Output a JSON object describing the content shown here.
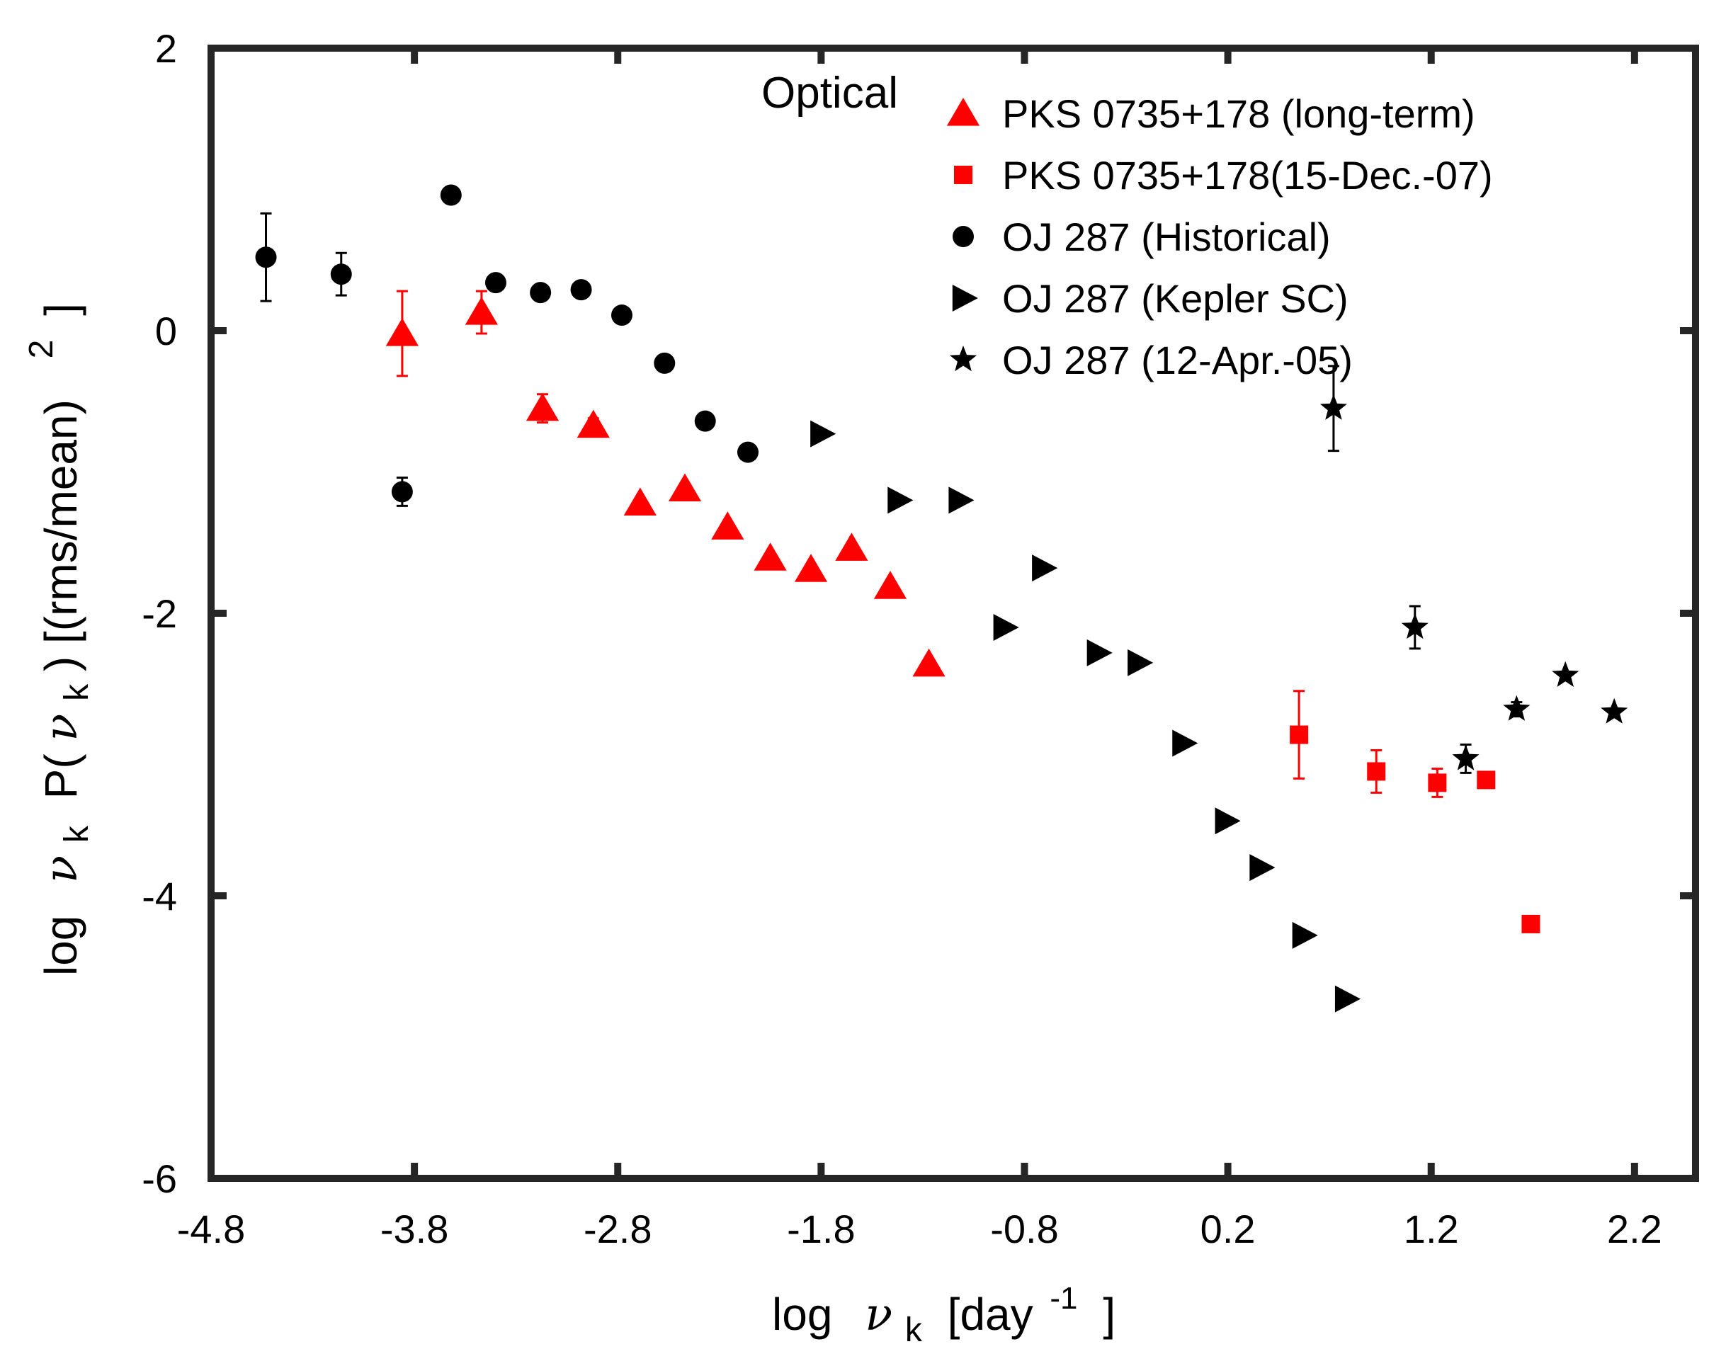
{
  "chart_data": {
    "type": "scatter",
    "title": "",
    "annotation": "Optical",
    "xlabel": {
      "prefix": "log",
      "symbol": "ν",
      "subscript": "k",
      "unit_open": "[day",
      "unit_sup": "-1",
      "unit_close": "]"
    },
    "ylabel": {
      "prefix": "log",
      "symbol": "ν",
      "subscript": "k",
      "middle": "P(",
      "symbol2": "ν",
      "subscript2": "k",
      "rest": ") [(rms/mean)",
      "sup": "2",
      "close": "]"
    },
    "xlim": [
      -4.8,
      2.5
    ],
    "ylim": [
      -6,
      2
    ],
    "xticks": [
      -4.8,
      -3.8,
      -2.8,
      -1.8,
      -0.8,
      0.2,
      1.2,
      2.2
    ],
    "xtick_labels": [
      "-4.8",
      "-3.8",
      "-2.8",
      "-1.8",
      "-0.8",
      "0.2",
      "1.2",
      "2.2"
    ],
    "yticks": [
      -6,
      -4,
      -2,
      0,
      2
    ],
    "ytick_labels": [
      "-6",
      "-4",
      "-2",
      "0",
      "2"
    ],
    "grid": false,
    "legend_position": "top-right",
    "series": [
      {
        "name": "PKS 0735+178 (long-term)",
        "marker": "triangle",
        "color": "#ff0000",
        "points": [
          {
            "x": -3.86,
            "y": -0.02,
            "err": 0.3
          },
          {
            "x": -3.47,
            "y": 0.13,
            "err": 0.15
          },
          {
            "x": -3.17,
            "y": -0.55,
            "err": 0.1
          },
          {
            "x": -2.92,
            "y": -0.67,
            "err": 0.05
          },
          {
            "x": -2.69,
            "y": -1.22,
            "err": 0
          },
          {
            "x": -2.47,
            "y": -1.12,
            "err": 0
          },
          {
            "x": -2.26,
            "y": -1.39,
            "err": 0
          },
          {
            "x": -2.05,
            "y": -1.61,
            "err": 0
          },
          {
            "x": -1.85,
            "y": -1.69,
            "err": 0
          },
          {
            "x": -1.65,
            "y": -1.54,
            "err": 0
          },
          {
            "x": -1.46,
            "y": -1.81,
            "err": 0
          },
          {
            "x": -1.27,
            "y": -2.36,
            "err": 0
          }
        ]
      },
      {
        "name": "PKS 0735+178(15-Dec.-07)",
        "marker": "square",
        "color": "#ff0000",
        "points": [
          {
            "x": 0.55,
            "y": -2.86,
            "err": 0.31
          },
          {
            "x": 0.93,
            "y": -3.12,
            "err": 0.15
          },
          {
            "x": 1.23,
            "y": -3.2,
            "err": 0.1
          },
          {
            "x": 1.47,
            "y": -3.18,
            "err": 0.05
          },
          {
            "x": 1.69,
            "y": -4.2,
            "err": 0
          }
        ]
      },
      {
        "name": "OJ 287 (Historical)",
        "marker": "circle",
        "color": "#000000",
        "points": [
          {
            "x": -4.53,
            "y": 0.52,
            "err": 0.31
          },
          {
            "x": -4.16,
            "y": 0.4,
            "err": 0.15
          },
          {
            "x": -3.86,
            "y": -1.14,
            "err": 0.1
          },
          {
            "x": -3.62,
            "y": 0.96,
            "err": 0
          },
          {
            "x": -3.4,
            "y": 0.34,
            "err": 0
          },
          {
            "x": -3.18,
            "y": 0.27,
            "err": 0
          },
          {
            "x": -2.98,
            "y": 0.29,
            "err": 0
          },
          {
            "x": -2.78,
            "y": 0.11,
            "err": 0
          },
          {
            "x": -2.57,
            "y": -0.23,
            "err": 0
          },
          {
            "x": -2.37,
            "y": -0.64,
            "err": 0
          },
          {
            "x": -2.16,
            "y": -0.86,
            "err": 0
          }
        ]
      },
      {
        "name": "OJ 287 (Kepler SC)",
        "marker": "triangle-right",
        "color": "#000000",
        "points": [
          {
            "x": -1.8,
            "y": -0.73
          },
          {
            "x": -1.42,
            "y": -1.2
          },
          {
            "x": -1.12,
            "y": -1.2
          },
          {
            "x": -0.9,
            "y": -2.1
          },
          {
            "x": -0.71,
            "y": -1.68
          },
          {
            "x": -0.44,
            "y": -2.28
          },
          {
            "x": -0.24,
            "y": -2.35
          },
          {
            "x": -0.02,
            "y": -2.92
          },
          {
            "x": 0.19,
            "y": -3.47
          },
          {
            "x": 0.36,
            "y": -3.8
          },
          {
            "x": 0.57,
            "y": -4.28
          },
          {
            "x": 0.78,
            "y": -4.73
          }
        ]
      },
      {
        "name": "OJ 287 (12-Apr.-05)",
        "marker": "star",
        "color": "#000000",
        "points": [
          {
            "x": 0.72,
            "y": -0.55,
            "err": 0.3
          },
          {
            "x": 1.12,
            "y": -2.1,
            "err": 0.15
          },
          {
            "x": 1.37,
            "y": -3.03,
            "err": 0.1
          },
          {
            "x": 1.62,
            "y": -2.68,
            "err": 0.05
          },
          {
            "x": 1.86,
            "y": -2.44,
            "err": 0
          },
          {
            "x": 2.1,
            "y": -2.7,
            "err": 0
          }
        ]
      }
    ]
  }
}
